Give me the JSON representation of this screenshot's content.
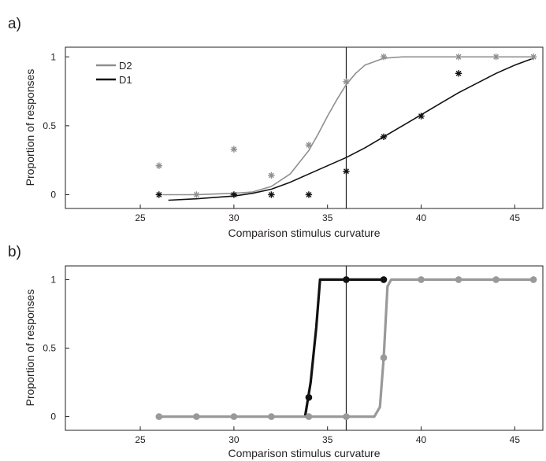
{
  "figure": {
    "panels": [
      {
        "panel_label": "a)",
        "xlabel": "Comparison stimulus curvature",
        "ylabel": "Proportion of responses",
        "xticks": [
          25,
          30,
          35,
          40,
          45
        ],
        "yticks": [
          0,
          0.5,
          1
        ],
        "legend": {
          "position": "top-left",
          "entries": [
            {
              "label": "D2",
              "color": "#8f8f8f"
            },
            {
              "label": "D1",
              "color": "#111111"
            }
          ]
        }
      },
      {
        "panel_label": "b)",
        "xlabel": "Comparison stimulus curvature",
        "ylabel": "Proportion of responses",
        "xticks": [
          25,
          30,
          35,
          40,
          45
        ],
        "yticks": [
          0,
          0.5,
          1
        ]
      }
    ]
  },
  "chart_data": [
    {
      "type": "scatter",
      "panel": "a)",
      "xlabel": "Comparison stimulus curvature",
      "ylabel": "Proportion of responses",
      "xlim": [
        21,
        46.5
      ],
      "ylim": [
        -0.1,
        1.07
      ],
      "grid": false,
      "legend": "top-left",
      "reference_line_x": 36,
      "series": [
        {
          "name": "D2",
          "color": "#8f8f8f",
          "marker": "asterisk",
          "points": {
            "x": [
              26,
              28,
              30,
              32,
              34,
              36,
              38,
              42,
              44,
              46
            ],
            "y": [
              0.21,
              0.0,
              0.33,
              0.14,
              0.36,
              0.82,
              1.0,
              1.0,
              1.0,
              1.0
            ]
          },
          "fit": {
            "x": [
              26.2,
              28,
              30,
              31,
              32,
              33,
              34,
              34.5,
              35,
              35.5,
              36,
              36.5,
              37,
              38,
              39,
              40,
              42,
              44,
              46
            ],
            "y": [
              0.0,
              0.0,
              0.01,
              0.02,
              0.06,
              0.15,
              0.32,
              0.44,
              0.57,
              0.69,
              0.8,
              0.88,
              0.94,
              0.99,
              1.0,
              1.0,
              1.0,
              1.0,
              1.0
            ]
          }
        },
        {
          "name": "D1",
          "color": "#111111",
          "marker": "asterisk",
          "points": {
            "x": [
              26,
              30,
              32,
              34,
              36,
              38,
              40,
              42
            ],
            "y": [
              0.0,
              0.0,
              0.0,
              0.0,
              0.17,
              0.42,
              0.57,
              0.88
            ]
          },
          "fit": {
            "x": [
              26.5,
              28,
              30,
              31,
              32,
              33,
              34,
              35,
              36,
              37,
              38,
              39,
              40,
              41,
              42,
              43,
              44,
              45,
              46
            ],
            "y": [
              -0.04,
              -0.03,
              -0.01,
              0.01,
              0.04,
              0.09,
              0.15,
              0.21,
              0.27,
              0.34,
              0.42,
              0.5,
              0.58,
              0.66,
              0.74,
              0.81,
              0.88,
              0.94,
              0.99
            ]
          }
        }
      ]
    },
    {
      "type": "line",
      "panel": "b)",
      "xlabel": "Comparison stimulus curvature",
      "ylabel": "Proportion of responses",
      "xlim": [
        21,
        46.5
      ],
      "ylim": [
        -0.1,
        1.1
      ],
      "grid": false,
      "reference_line_x": 36,
      "series": [
        {
          "color": "#111111",
          "marker": "dot",
          "points": {
            "x": [
              34,
              36,
              38
            ],
            "y": [
              0.14,
              1.0,
              1.0
            ]
          },
          "line": {
            "x": [
              33.8,
              34.1,
              34.4,
              34.6,
              36,
              38
            ],
            "y": [
              0.0,
              0.25,
              0.65,
              1.0,
              1.0,
              1.0
            ]
          }
        },
        {
          "color": "#999999",
          "marker": "dot",
          "points": {
            "x": [
              26,
              28,
              30,
              32,
              34,
              36,
              38,
              40,
              42,
              44,
              46
            ],
            "y": [
              0.0,
              0.0,
              0.0,
              0.0,
              0.0,
              0.0,
              0.43,
              1.0,
              1.0,
              1.0,
              1.0
            ]
          },
          "line": {
            "x": [
              26,
              28,
              30,
              32,
              34,
              36,
              37.5,
              37.8,
              38,
              38.2,
              38.4,
              40,
              42,
              44,
              46
            ],
            "y": [
              0.0,
              0.0,
              0.0,
              0.0,
              0.0,
              0.0,
              0.0,
              0.07,
              0.43,
              0.95,
              1.0,
              1.0,
              1.0,
              1.0,
              1.0
            ]
          }
        }
      ]
    }
  ]
}
